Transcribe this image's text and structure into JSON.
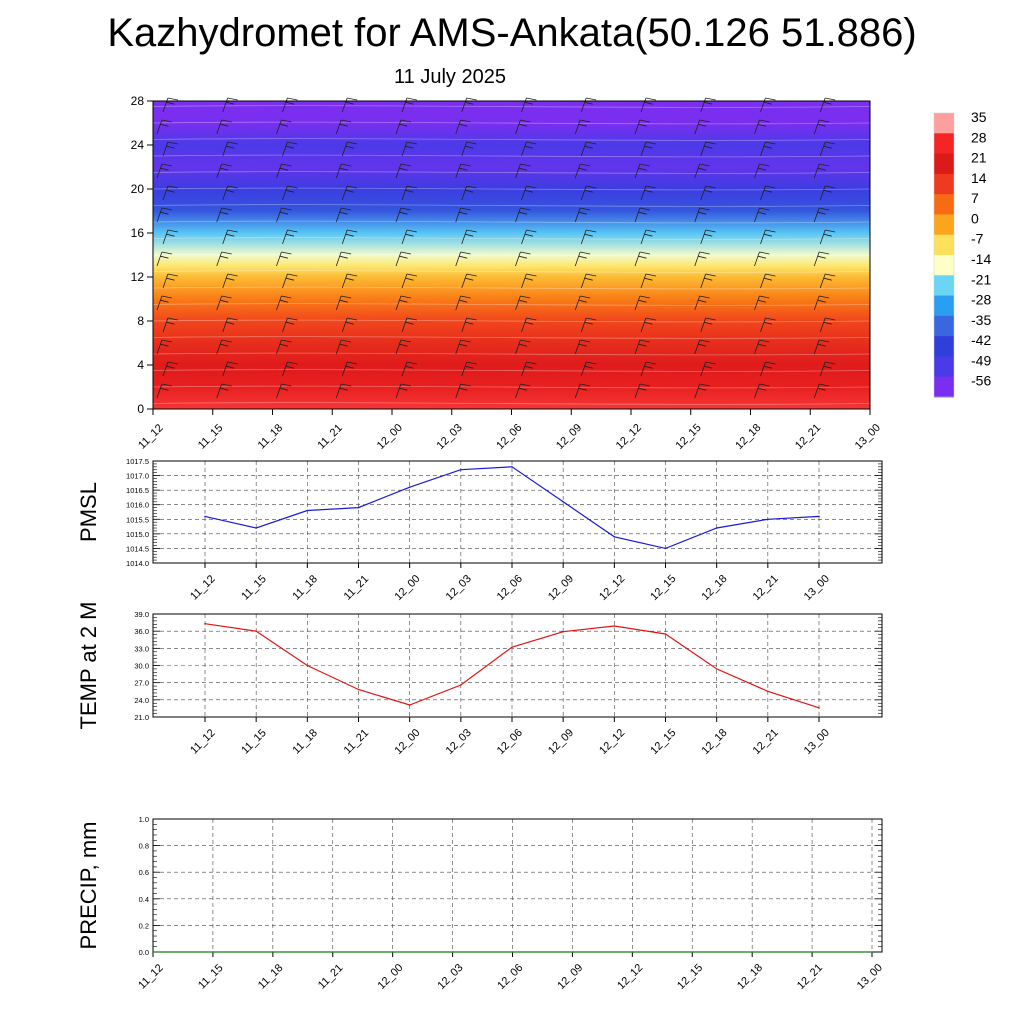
{
  "header": {
    "title": "Kazhydromet for AMS-Ankata(50.126 51.886)",
    "date": "11 July 2025"
  },
  "chart_data": [
    {
      "type": "heatmap",
      "panel": "temperature-wind cross-section",
      "x_tick_labels": [
        "11_12",
        "11_15",
        "11_18",
        "11_21",
        "12_00",
        "12_03",
        "12_06",
        "12_09",
        "12_12",
        "12_15",
        "12_18",
        "12_21",
        "13_00"
      ],
      "y_ticks": [
        0,
        4,
        8,
        12,
        16,
        20,
        24,
        28
      ],
      "ylim": [
        0,
        28
      ],
      "colorbar": {
        "labels": [
          "35",
          "28",
          "21",
          "14",
          "7",
          "0",
          "-7",
          "-14",
          "-21",
          "-28",
          "-35",
          "-42",
          "-49",
          "-56"
        ],
        "colors": [
          "#ff9e9e",
          "#f52525",
          "#dd1a1a",
          "#ee3a1e",
          "#f96a14",
          "#fca41c",
          "#fde15c",
          "#ffffc8",
          "#6ad5f5",
          "#2a9ef0",
          "#3a66e0",
          "#2f3fda",
          "#4b3ae8",
          "#7a2ff0"
        ]
      },
      "temperature_profile": [
        {
          "level": 0,
          "value": 32
        },
        {
          "level": 2,
          "value": 27
        },
        {
          "level": 4,
          "value": 24
        },
        {
          "level": 6,
          "value": 19
        },
        {
          "level": 8,
          "value": 14
        },
        {
          "level": 10,
          "value": 6
        },
        {
          "level": 12,
          "value": -2
        },
        {
          "level": 13,
          "value": -8
        },
        {
          "level": 14,
          "value": -15
        },
        {
          "level": 16,
          "value": -24
        },
        {
          "level": 18,
          "value": -40
        },
        {
          "level": 20,
          "value": -48
        },
        {
          "level": 22,
          "value": -56
        },
        {
          "level": 24,
          "value": -52
        },
        {
          "level": 26,
          "value": -60
        },
        {
          "level": 28,
          "value": -62
        }
      ],
      "wind_levels": [
        1,
        3,
        5,
        7,
        9,
        11,
        13,
        15,
        17,
        19,
        21,
        23,
        25,
        27
      ]
    },
    {
      "type": "line",
      "ylabel": "PMSL",
      "x": [
        "11_12",
        "11_15",
        "11_18",
        "11_21",
        "12_00",
        "12_03",
        "12_06",
        "12_09",
        "12_12",
        "12_15",
        "12_18",
        "12_21",
        "13_00"
      ],
      "series": [
        {
          "values": [
            1015.6,
            1015.2,
            1015.8,
            1015.9,
            1016.6,
            1017.2,
            1017.3,
            1016.1,
            1014.9,
            1014.5,
            1015.2,
            1015.5,
            1015.6
          ]
        }
      ],
      "ylim": [
        1014.0,
        1017.5
      ],
      "y_ticks": [
        "1014.0",
        "1014.5",
        "1015.0",
        "1015.5",
        "1016.0",
        "1016.5",
        "1017.0",
        "1017.5"
      ],
      "color": "#1a1ad8",
      "grid": true
    },
    {
      "type": "line",
      "ylabel": "TEMP at 2 M",
      "x": [
        "11_12",
        "11_15",
        "11_18",
        "11_21",
        "12_00",
        "12_03",
        "12_06",
        "12_09",
        "12_12",
        "12_15",
        "12_18",
        "12_21",
        "13_00"
      ],
      "series": [
        {
          "values": [
            37.3,
            36.0,
            30.0,
            25.8,
            23.1,
            26.6,
            33.2,
            35.9,
            36.9,
            35.5,
            29.4,
            25.5,
            22.6
          ]
        }
      ],
      "ylim": [
        21.0,
        39.0
      ],
      "y_ticks": [
        "21.0",
        "24.0",
        "27.0",
        "30.0",
        "33.0",
        "36.0",
        "39.0"
      ],
      "color": "#e01414",
      "grid": true
    },
    {
      "type": "line",
      "ylabel": "PRECIP, mm",
      "x": [
        "11_12",
        "11_15",
        "11_18",
        "11_21",
        "12_00",
        "12_03",
        "12_06",
        "12_09",
        "12_12",
        "12_15",
        "12_18",
        "12_21",
        "13_00"
      ],
      "series": [
        {
          "values": [
            0,
            0,
            0,
            0,
            0,
            0,
            0,
            0,
            0,
            0,
            0,
            0,
            0
          ]
        }
      ],
      "ylim": [
        0.0,
        1.0
      ],
      "y_ticks": [
        "0.0",
        "0.2",
        "0.4",
        "0.6",
        "0.8",
        "1.0"
      ],
      "color": "#1a7a1a",
      "grid": true
    }
  ]
}
